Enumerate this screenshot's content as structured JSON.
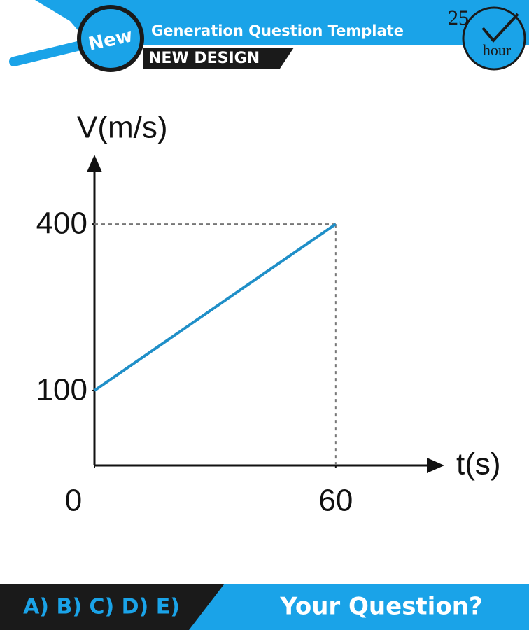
{
  "header": {
    "badge": "New",
    "title": "Generation Question Template",
    "subtitle": "NEW DESIGN",
    "clock_number": "25",
    "clock_unit": "hour"
  },
  "footer": {
    "options": "A) B) C) D) E)",
    "prompt": "Your Question?"
  },
  "chart_data": {
    "type": "line",
    "ylabel": "V(m/s)",
    "xlabel": "t(s)",
    "x": [
      0,
      60
    ],
    "values": [
      100,
      400
    ],
    "color": "#1f8fc8",
    "xlim": [
      0,
      87
    ],
    "ylim": [
      -35,
      525
    ],
    "xticks": [
      0,
      60
    ],
    "yticks": [
      100,
      400
    ]
  }
}
